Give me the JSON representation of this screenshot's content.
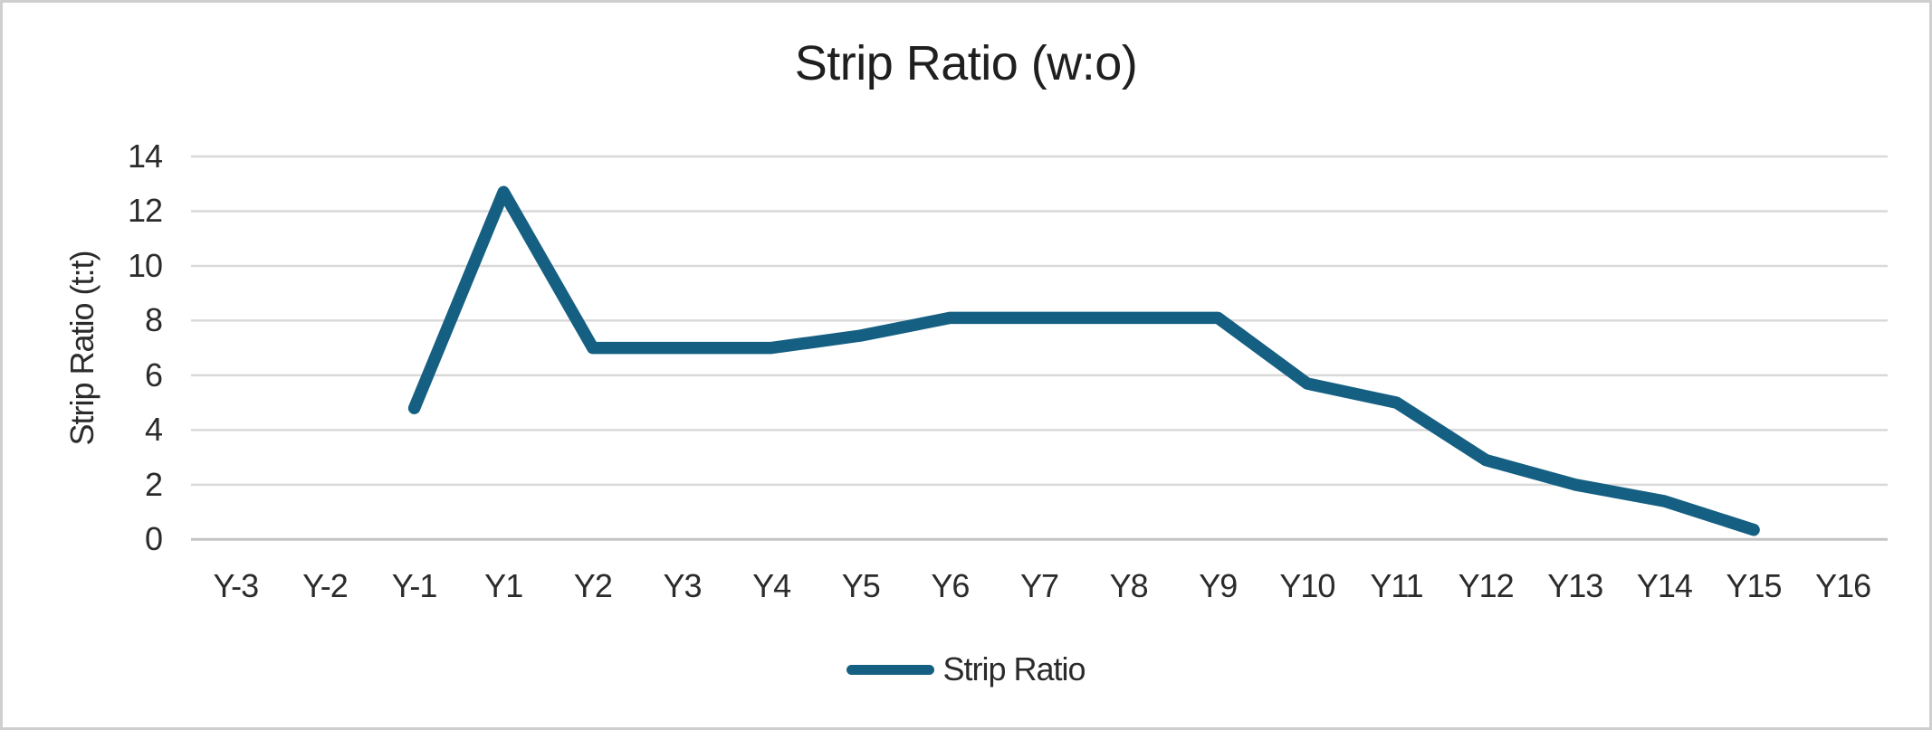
{
  "window": {
    "background": "#ffffff",
    "border_color": "#cfcfcf"
  },
  "chart_data": {
    "type": "line",
    "title": "Strip Ratio (w:o)",
    "xlabel": "",
    "ylabel": "Strip Ratio (t:t)",
    "categories": [
      "Y-3",
      "Y-2",
      "Y-1",
      "Y1",
      "Y2",
      "Y3",
      "Y4",
      "Y5",
      "Y6",
      "Y7",
      "Y8",
      "Y9",
      "Y10",
      "Y11",
      "Y12",
      "Y13",
      "Y14",
      "Y15",
      "Y16"
    ],
    "series": [
      {
        "name": "Strip Ratio",
        "color": "#156082",
        "values": [
          null,
          null,
          4.8,
          12.7,
          7,
          7,
          7,
          7.45,
          8.1,
          8.1,
          8.1,
          8.1,
          5.7,
          5.0,
          2.9,
          2.0,
          1.4,
          0.35,
          null
        ]
      }
    ],
    "ylim": [
      0,
      14
    ],
    "y_ticks": [
      0,
      2,
      4,
      6,
      8,
      10,
      12,
      14
    ],
    "grid": "horizontal",
    "gridline_color": "#d9d9d9",
    "axis_line_color": "#c4c4c4",
    "legend_position": "bottom",
    "text_color": "#2b2b2b"
  }
}
